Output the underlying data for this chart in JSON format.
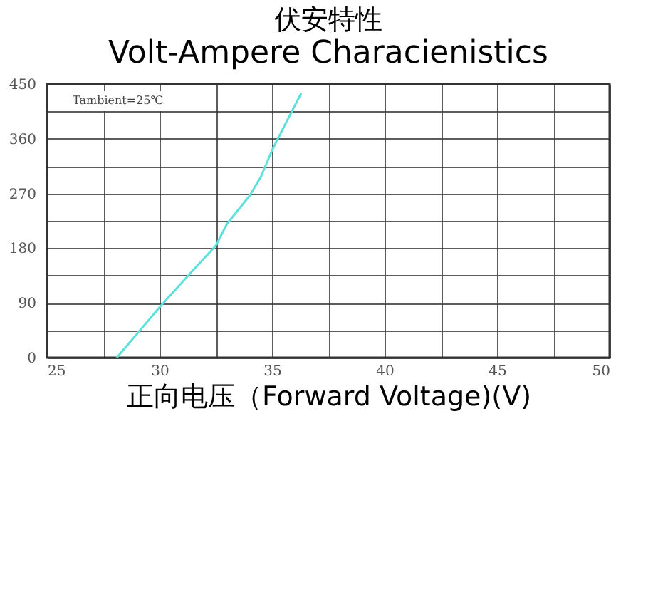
{
  "chart_data": {
    "type": "line",
    "title": "伏安特性",
    "subtitle": "Volt-Ampere Characienistics",
    "xlabel": "正向电压（Forward Voltage)(V)",
    "annotations": [
      "Tambient=25℃"
    ],
    "series": [
      {
        "color": "#5fe0dc",
        "x": [
          28.1,
          30.1,
          31.4,
          32.5,
          33.0,
          34.0,
          34.5,
          35.0,
          35.6,
          36.3
        ],
        "values": [
          0,
          87,
          140,
          184,
          220,
          266,
          297,
          341,
          385,
          435
        ]
      }
    ],
    "xlim": [
      25,
      50
    ],
    "xticks": [
      25,
      {
        "value": 27.5,
        "label": null
      },
      30,
      {
        "value": 32.5,
        "label": null
      },
      35,
      {
        "value": 37.5,
        "label": null
      },
      40,
      {
        "value": 42.5,
        "label": null
      },
      45,
      {
        "value": 47.5,
        "label": null
      },
      50
    ],
    "ylim": [
      0,
      450
    ],
    "yticks": [
      0,
      {
        "value": 45,
        "label": null
      },
      90,
      {
        "value": 135,
        "label": null
      },
      180,
      {
        "value": 225,
        "label": null
      },
      270,
      {
        "value": 315,
        "label": null
      },
      360,
      {
        "value": 405,
        "label": null
      },
      450
    ],
    "grid": true,
    "marker": "none",
    "line_style": "solid"
  }
}
